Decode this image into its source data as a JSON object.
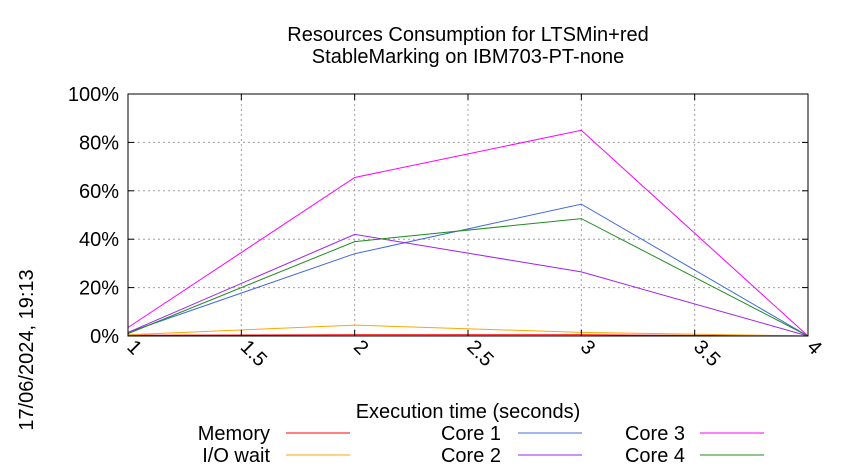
{
  "side_label": "17/06/2024, 19:13",
  "chart_data": {
    "type": "line",
    "title": [
      "Resources Consumption for LTSMin+red",
      "StableMarking on IBM703-PT-none"
    ],
    "xlabel": "Execution time (seconds)",
    "ylabel": "",
    "xlim": [
      1,
      4
    ],
    "ylim": [
      0,
      100
    ],
    "x_ticks": [
      1,
      1.5,
      2,
      2.5,
      3,
      3.5,
      4
    ],
    "x_tick_labels": [
      "1",
      "1.5",
      "2",
      "2.5",
      "3",
      "3.5",
      "4"
    ],
    "y_ticks": [
      0,
      20,
      40,
      60,
      80,
      100
    ],
    "y_tick_labels": [
      "0%",
      "20%",
      "40%",
      "60%",
      "80%",
      "100%"
    ],
    "grid": true,
    "legend_position": "bottom",
    "x": [
      1,
      2,
      3,
      4
    ],
    "series": [
      {
        "name": "Memory",
        "color": "#ff0000",
        "values": [
          0.3,
          0.5,
          0.5,
          0
        ]
      },
      {
        "name": "I/O wait",
        "color": "#ffa500",
        "values": [
          0.5,
          4.5,
          1.5,
          0
        ]
      },
      {
        "name": "Core 1",
        "color": "#4169e1",
        "values": [
          1.5,
          34,
          54.5,
          0
        ]
      },
      {
        "name": "Core 2",
        "color": "#a020f0",
        "values": [
          1.5,
          42,
          26.5,
          0
        ]
      },
      {
        "name": "Core 3",
        "color": "#ff00ff",
        "values": [
          3.5,
          65.5,
          85,
          0
        ]
      },
      {
        "name": "Core 4",
        "color": "#228b22",
        "values": [
          1,
          39,
          48.5,
          0
        ]
      }
    ]
  }
}
